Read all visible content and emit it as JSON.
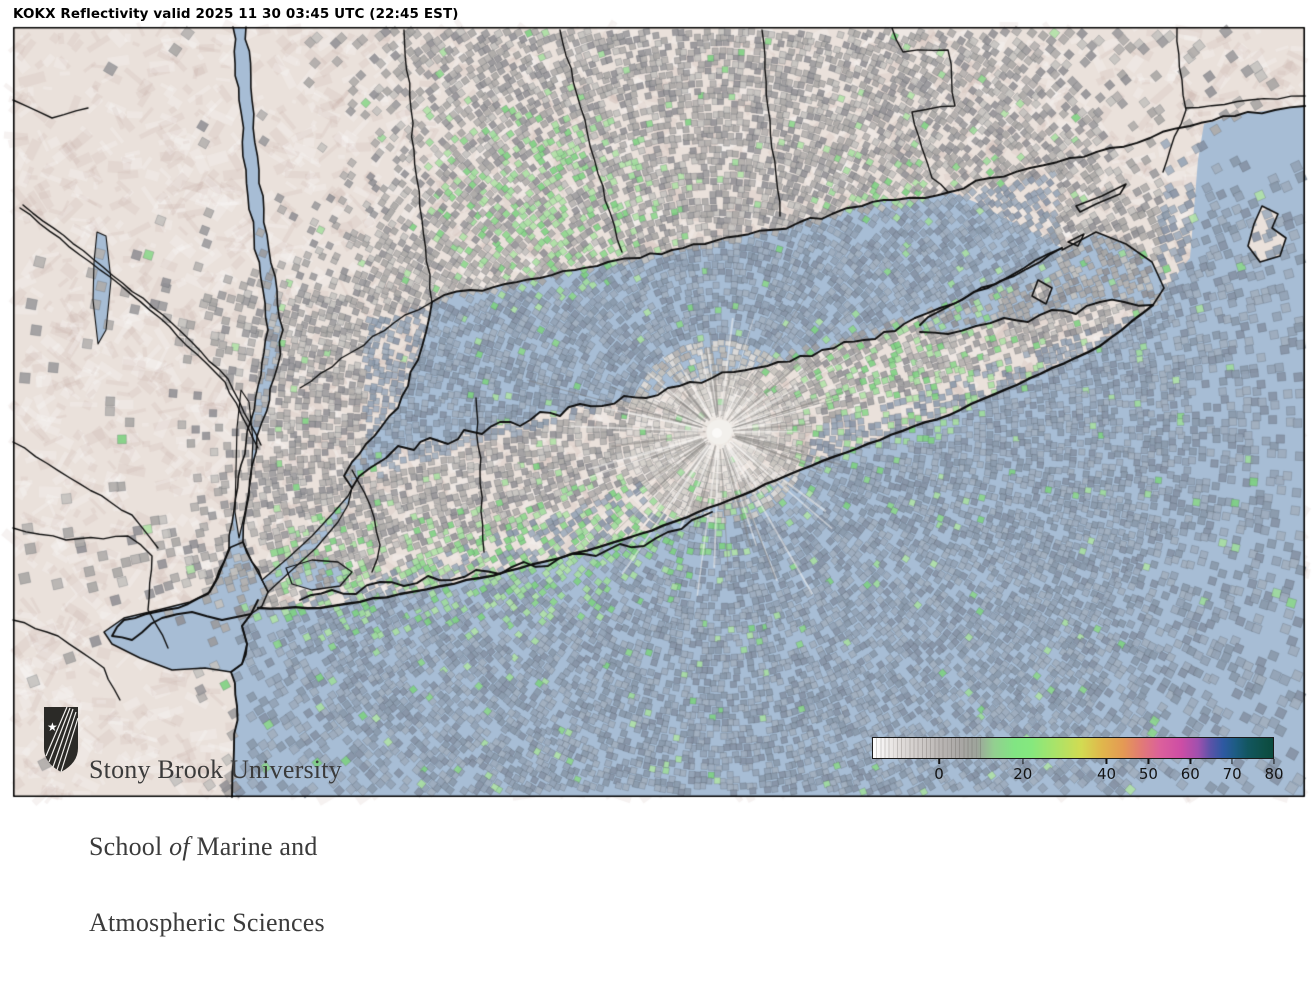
{
  "header": {
    "title": "KOKX Reflectivity valid 2025 11 30 03:45 UTC (22:45 EST)"
  },
  "colorbar": {
    "vmin": -16,
    "vmax": 80,
    "ticks": [
      0,
      20,
      40,
      50,
      60,
      70,
      80
    ],
    "gray_steps_until": 10,
    "stops": [
      [
        -16,
        "#ffffff"
      ],
      [
        -10,
        "#e2dedc"
      ],
      [
        -4,
        "#ccc8c6"
      ],
      [
        0,
        "#bab6b4"
      ],
      [
        5,
        "#a9a7a5"
      ],
      [
        9,
        "#9da49b"
      ],
      [
        13,
        "#93cf90"
      ],
      [
        18,
        "#81e583"
      ],
      [
        22,
        "#85e87e"
      ],
      [
        28,
        "#abe368"
      ],
      [
        34,
        "#d2db52"
      ],
      [
        39,
        "#e0b64c"
      ],
      [
        44,
        "#e49a54"
      ],
      [
        48,
        "#e27d72"
      ],
      [
        53,
        "#db609c"
      ],
      [
        58,
        "#cd4da5"
      ],
      [
        62,
        "#a050ae"
      ],
      [
        65,
        "#5a53a8"
      ],
      [
        68,
        "#2e59a2"
      ],
      [
        71,
        "#1d5c83"
      ],
      [
        74,
        "#12565f"
      ],
      [
        78,
        "#0e4f46"
      ],
      [
        80,
        "#0b4a3e"
      ]
    ]
  },
  "logo": {
    "line1": "Stony Brook University",
    "line2_pre": "School ",
    "line2_italic": "of",
    "line2_post": " Marine and",
    "line3": "Atmospheric Sciences"
  },
  "map": {
    "land_color": "#eae1db",
    "water_color": "#a7bdd5",
    "boundary_color": "#0e0e0e",
    "frame_color": "#000000",
    "echo_gray_land": [
      "#c4c1be",
      "#b4b1ae",
      "#a7a5a3",
      "#9b9a9c",
      "#919094",
      "#aeaba8"
    ],
    "echo_gray_water": [
      "#93a2b4",
      "#8997a9",
      "#9dabbc",
      "#8591a3",
      "#a2aebd"
    ],
    "echo_gray_center": [
      "#e2ded9",
      "#d3cfca",
      "#c5c1bc",
      "#b6b2ae"
    ],
    "echo_green": [
      "#9edc9b",
      "#8bd68a",
      "#b0e2a6",
      "#7cd07f",
      "#a8dfa0"
    ],
    "radar_center_color": "#f2f0ec"
  }
}
